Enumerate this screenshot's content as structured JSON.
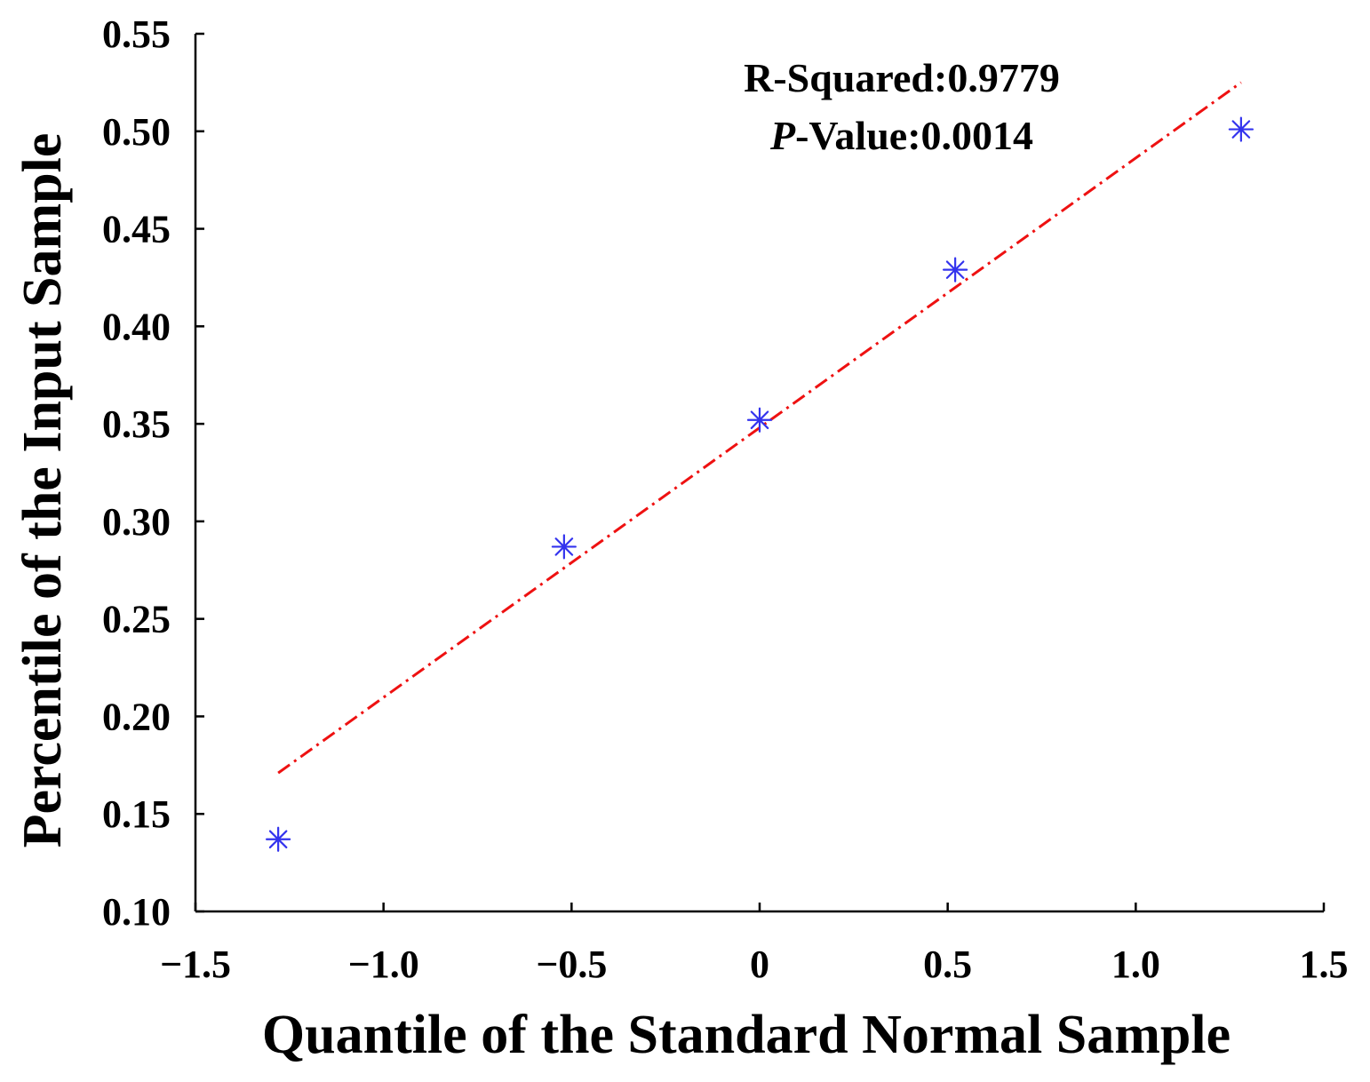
{
  "chart_data": {
    "type": "scatter",
    "xlabel": "Quantile of the Standard Normal Sample",
    "ylabel": "Percentile of the Input Sample",
    "xlim": [
      -1.5,
      1.5
    ],
    "ylim": [
      0.1,
      0.55
    ],
    "x_ticks": [
      -1.5,
      -1.0,
      -0.5,
      0,
      0.5,
      1.0,
      1.5
    ],
    "x_tick_labels": [
      "−1.5",
      "−1.0",
      "−0.5",
      "0",
      "0.5",
      "1.0",
      "1.5"
    ],
    "y_ticks": [
      0.1,
      0.15,
      0.2,
      0.25,
      0.3,
      0.35,
      0.4,
      0.45,
      0.5,
      0.55
    ],
    "y_tick_labels": [
      "0.10",
      "0.15",
      "0.20",
      "0.25",
      "0.30",
      "0.35",
      "0.40",
      "0.45",
      "0.50",
      "0.55"
    ],
    "grid": false,
    "series": [
      {
        "marker": "asterisk",
        "color": "#3333ee",
        "x": [
          -1.28,
          -0.52,
          0.0,
          0.52,
          1.28
        ],
        "y": [
          0.137,
          0.287,
          0.352,
          0.429,
          0.501
        ]
      }
    ],
    "fit_line": {
      "style": "dash-dot",
      "color": "#ee1111",
      "x": [
        -1.28,
        1.28
      ],
      "y": [
        0.171,
        0.525
      ]
    },
    "annotations": {
      "r_squared_label": "R-Squared:0.9779",
      "p_value_prefix": "P",
      "p_value_label": "-Value:0.0014"
    }
  }
}
